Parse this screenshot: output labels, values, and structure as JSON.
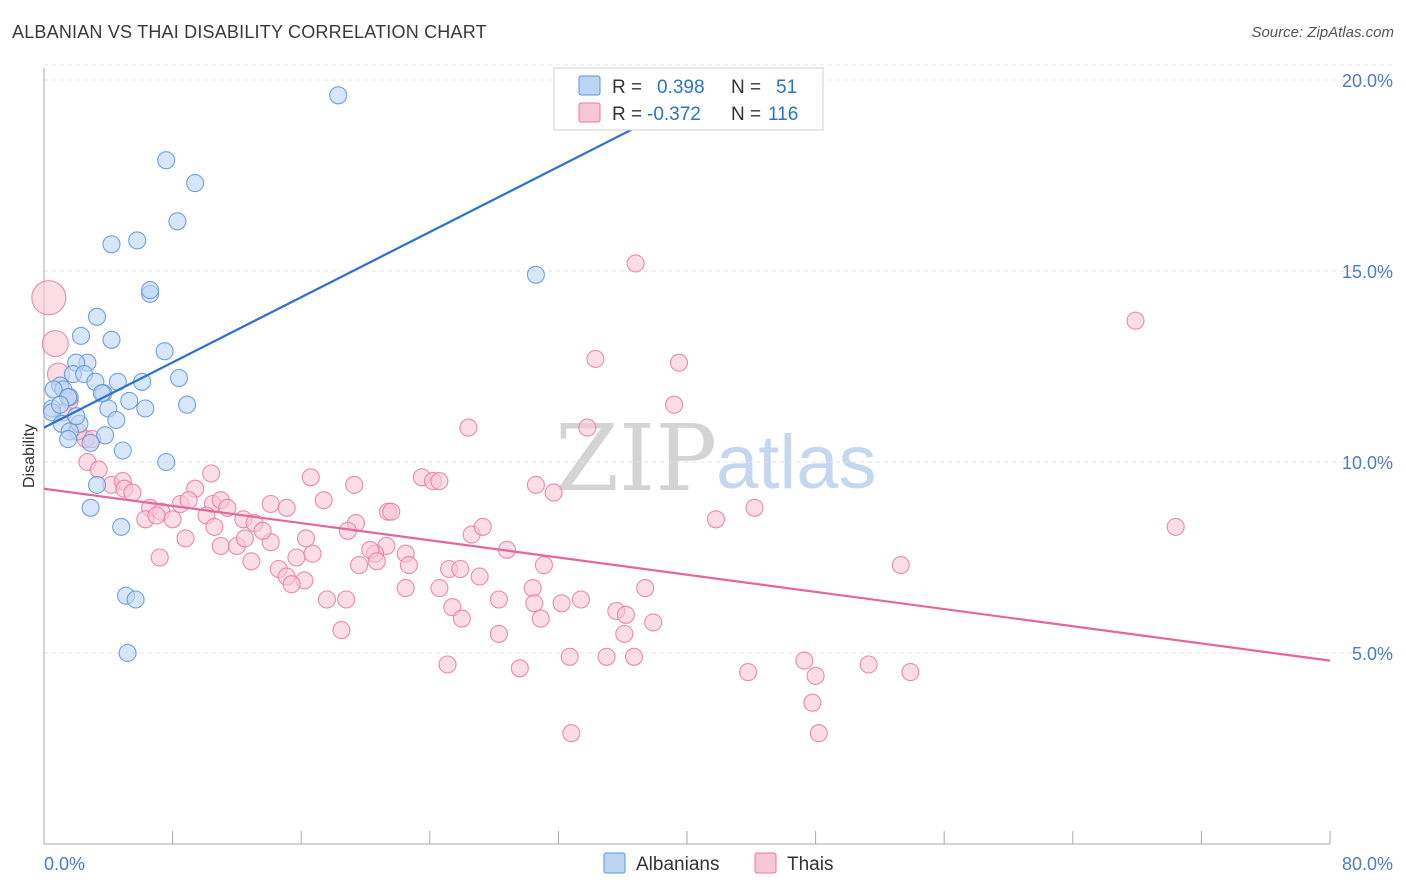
{
  "header": {
    "title": "ALBANIAN VS THAI DISABILITY CORRELATION CHART",
    "source": "Source: ZipAtlas.com"
  },
  "watermark": {
    "part1": "ZIP",
    "part2": "atlas"
  },
  "colors": {
    "albanians": "#5b93d9",
    "albanians_fill": "#bdd5f3",
    "thais": "#e8799f",
    "thais_fill": "#f8c6d6",
    "albanians_line": "#2a72cc",
    "thais_line": "#e2679a",
    "tick_label": "#4a7cc9"
  },
  "legend": {
    "rows": [
      {
        "r_label": "R =",
        "r_value": "0.398",
        "n_label": "N =",
        "n_value": "51"
      },
      {
        "r_label": "R =",
        "r_value": "-0.372",
        "n_label": "N =",
        "n_value": "116"
      }
    ]
  },
  "bottom_legend": {
    "items": [
      "Albanians",
      "Thais"
    ]
  },
  "chart_data": {
    "type": "scatter",
    "title": "ALBANIAN VS THAI DISABILITY CORRELATION CHART",
    "xlabel": "",
    "ylabel": "Disability",
    "xlim": [
      0,
      80
    ],
    "ylim": [
      0,
      20
    ],
    "x_tick_labels": [
      "0.0%",
      "80.0%"
    ],
    "y_ticks": [
      5,
      10,
      15,
      20
    ],
    "y_tick_labels": [
      "5.0%",
      "10.0%",
      "15.0%",
      "20.0%"
    ],
    "grid": true,
    "legend_position": "top-center",
    "series": [
      {
        "name": "Albanians",
        "r": 0.398,
        "n": 51,
        "trend": {
          "x": [
            0,
            38.9
          ],
          "y": [
            10.9,
            19.2
          ]
        },
        "points": [
          [
            18.3,
            19.6
          ],
          [
            7.6,
            17.9
          ],
          [
            9.4,
            17.3
          ],
          [
            8.3,
            16.3
          ],
          [
            4.2,
            15.7
          ],
          [
            5.8,
            15.8
          ],
          [
            30.6,
            14.9
          ],
          [
            6.6,
            14.4
          ],
          [
            6.6,
            14.5
          ],
          [
            3.3,
            13.8
          ],
          [
            2.3,
            13.3
          ],
          [
            4.2,
            13.2
          ],
          [
            7.5,
            12.9
          ],
          [
            2.7,
            12.6
          ],
          [
            2.0,
            12.6
          ],
          [
            1.8,
            12.3
          ],
          [
            8.4,
            12.2
          ],
          [
            2.5,
            12.3
          ],
          [
            4.6,
            12.1
          ],
          [
            6.1,
            12.1
          ],
          [
            3.2,
            12.1
          ],
          [
            1.0,
            12.0
          ],
          [
            1.2,
            11.9
          ],
          [
            0.6,
            11.9
          ],
          [
            3.7,
            11.8
          ],
          [
            3.6,
            11.8
          ],
          [
            1.6,
            11.7
          ],
          [
            1.5,
            11.7
          ],
          [
            5.3,
            11.6
          ],
          [
            8.9,
            11.5
          ],
          [
            0.5,
            11.4
          ],
          [
            4.0,
            11.4
          ],
          [
            6.3,
            11.4
          ],
          [
            0.5,
            11.3
          ],
          [
            4.5,
            11.1
          ],
          [
            2.2,
            11.0
          ],
          [
            1.1,
            11.0
          ],
          [
            1.6,
            10.8
          ],
          [
            1.5,
            10.6
          ],
          [
            3.8,
            10.7
          ],
          [
            2.9,
            10.5
          ],
          [
            4.9,
            10.3
          ],
          [
            7.6,
            10.0
          ],
          [
            3.3,
            9.4
          ],
          [
            2.9,
            8.8
          ],
          [
            4.8,
            8.3
          ],
          [
            5.1,
            6.5
          ],
          [
            5.7,
            6.4
          ],
          [
            5.2,
            5.0
          ],
          [
            1.0,
            11.5
          ],
          [
            2.0,
            11.2
          ]
        ]
      },
      {
        "name": "Thais",
        "r": -0.372,
        "n": 116,
        "trend": {
          "x": [
            0,
            80
          ],
          "y": [
            9.3,
            4.8
          ]
        },
        "points": [
          [
            0.3,
            14.3
          ],
          [
            0.7,
            13.1
          ],
          [
            0.9,
            12.3
          ],
          [
            36.8,
            15.2
          ],
          [
            67.9,
            13.7
          ],
          [
            34.3,
            12.7
          ],
          [
            39.5,
            12.6
          ],
          [
            39.2,
            11.5
          ],
          [
            1.6,
            11.6
          ],
          [
            1.2,
            11.3
          ],
          [
            26.4,
            10.9
          ],
          [
            33.8,
            10.9
          ],
          [
            2.6,
            10.6
          ],
          [
            3.0,
            10.6
          ],
          [
            2.1,
            10.8
          ],
          [
            2.7,
            10.0
          ],
          [
            3.4,
            9.8
          ],
          [
            10.4,
            9.7
          ],
          [
            16.6,
            9.6
          ],
          [
            23.5,
            9.6
          ],
          [
            24.2,
            9.5
          ],
          [
            19.3,
            9.4
          ],
          [
            30.6,
            9.4
          ],
          [
            31.7,
            9.2
          ],
          [
            4.2,
            9.4
          ],
          [
            4.9,
            9.5
          ],
          [
            5.0,
            9.3
          ],
          [
            5.5,
            9.2
          ],
          [
            9.4,
            9.3
          ],
          [
            8.5,
            8.9
          ],
          [
            10.5,
            8.9
          ],
          [
            11.0,
            9.0
          ],
          [
            14.1,
            8.9
          ],
          [
            17.4,
            9.0
          ],
          [
            15.1,
            8.8
          ],
          [
            21.4,
            8.7
          ],
          [
            6.6,
            8.8
          ],
          [
            7.3,
            8.7
          ],
          [
            6.3,
            8.5
          ],
          [
            7.0,
            8.6
          ],
          [
            11.4,
            8.8
          ],
          [
            44.2,
            8.8
          ],
          [
            8.0,
            8.5
          ],
          [
            10.1,
            8.6
          ],
          [
            12.4,
            8.5
          ],
          [
            13.1,
            8.4
          ],
          [
            19.4,
            8.4
          ],
          [
            10.6,
            8.3
          ],
          [
            26.6,
            8.1
          ],
          [
            70.4,
            8.3
          ],
          [
            41.8,
            8.5
          ],
          [
            8.8,
            8.0
          ],
          [
            11.0,
            7.8
          ],
          [
            12.0,
            7.8
          ],
          [
            12.5,
            8.0
          ],
          [
            14.1,
            7.9
          ],
          [
            18.9,
            8.2
          ],
          [
            21.3,
            7.8
          ],
          [
            20.6,
            7.6
          ],
          [
            22.5,
            7.6
          ],
          [
            20.3,
            7.7
          ],
          [
            28.8,
            7.7
          ],
          [
            7.2,
            7.5
          ],
          [
            12.9,
            7.4
          ],
          [
            15.7,
            7.5
          ],
          [
            16.7,
            7.6
          ],
          [
            19.6,
            7.3
          ],
          [
            20.7,
            7.4
          ],
          [
            22.7,
            7.3
          ],
          [
            25.2,
            7.2
          ],
          [
            25.9,
            7.2
          ],
          [
            53.3,
            7.3
          ],
          [
            14.6,
            7.2
          ],
          [
            15.1,
            7.0
          ],
          [
            16.2,
            6.9
          ],
          [
            27.1,
            7.0
          ],
          [
            30.4,
            6.7
          ],
          [
            37.4,
            6.7
          ],
          [
            22.5,
            6.7
          ],
          [
            24.6,
            6.7
          ],
          [
            15.4,
            6.8
          ],
          [
            17.6,
            6.4
          ],
          [
            18.8,
            6.4
          ],
          [
            25.4,
            6.2
          ],
          [
            28.3,
            6.4
          ],
          [
            30.5,
            6.3
          ],
          [
            32.2,
            6.3
          ],
          [
            33.4,
            6.4
          ],
          [
            35.6,
            6.1
          ],
          [
            36.2,
            6.0
          ],
          [
            26.0,
            5.9
          ],
          [
            30.9,
            5.9
          ],
          [
            28.3,
            5.5
          ],
          [
            37.9,
            5.8
          ],
          [
            18.5,
            5.6
          ],
          [
            36.1,
            5.5
          ],
          [
            25.1,
            4.7
          ],
          [
            29.6,
            4.6
          ],
          [
            32.7,
            4.9
          ],
          [
            35.0,
            4.9
          ],
          [
            36.7,
            4.9
          ],
          [
            43.8,
            4.5
          ],
          [
            47.3,
            4.8
          ],
          [
            48.0,
            4.4
          ],
          [
            51.3,
            4.7
          ],
          [
            53.9,
            4.5
          ],
          [
            47.8,
            3.7
          ],
          [
            32.8,
            2.9
          ],
          [
            48.2,
            2.9
          ],
          [
            24.6,
            9.5
          ],
          [
            27.3,
            8.3
          ],
          [
            21.6,
            8.7
          ],
          [
            9.0,
            9.0
          ],
          [
            13.6,
            8.2
          ],
          [
            31.1,
            7.3
          ],
          [
            16.3,
            8.0
          ]
        ]
      }
    ]
  }
}
